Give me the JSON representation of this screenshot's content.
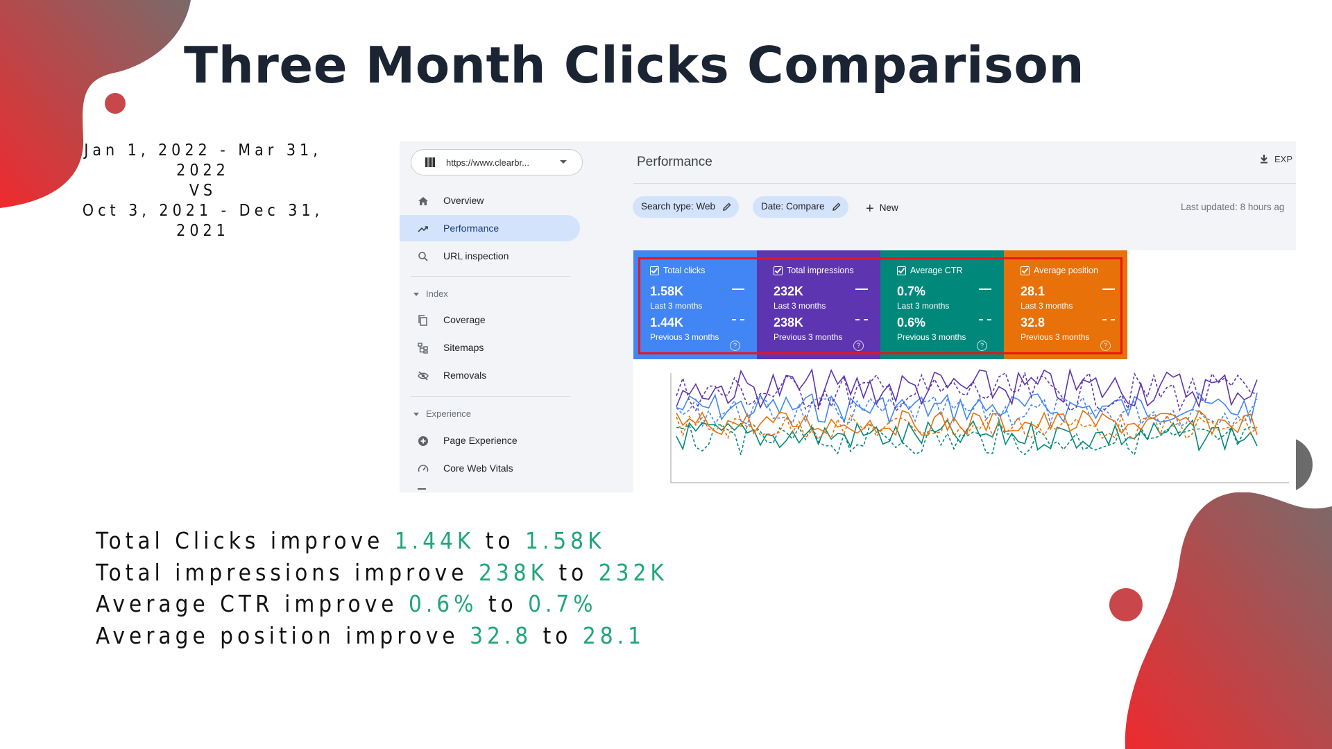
{
  "slide": {
    "title": "Three Month Clicks Comparison",
    "date_range": {
      "line1": "Jan 1, 2022 - Mar 31, 2022",
      "vs": "VS",
      "line2": "Oct 3, 2021 - Dec 31, 2021"
    },
    "summary": [
      {
        "prefix": "Total Clicks improve",
        "from": "1.44K",
        "to_word": "to",
        "to": "1.58K"
      },
      {
        "prefix": "Total impressions improve",
        "from": "238K",
        "to_word": "to",
        "to": "232K"
      },
      {
        "prefix": "Average CTR improve",
        "from": "0.6%",
        "to_word": "to",
        "to": "0.7%"
      },
      {
        "prefix": "Average position improve",
        "from": "32.8",
        "to_word": "to",
        "to": "28.1"
      }
    ],
    "accent_color": "#1ea67a",
    "blob_color": "#e6262b"
  },
  "console": {
    "property_url": "https://www.clearbr...",
    "nav": [
      {
        "label": "Overview",
        "icon": "home-icon",
        "active": false
      },
      {
        "label": "Performance",
        "icon": "trending-up-icon",
        "active": true
      },
      {
        "label": "URL inspection",
        "icon": "search-icon",
        "active": false
      }
    ],
    "section_index": "Index",
    "index_items": [
      {
        "label": "Coverage",
        "icon": "file-copy-icon"
      },
      {
        "label": "Sitemaps",
        "icon": "sitemap-icon"
      },
      {
        "label": "Removals",
        "icon": "visibility-off-icon"
      }
    ],
    "section_experience": "Experience",
    "experience_items": [
      {
        "label": "Page Experience",
        "icon": "plus-circle-icon"
      },
      {
        "label": "Core Web Vitals",
        "icon": "speed-gauge-icon"
      }
    ],
    "page_title": "Performance",
    "export_label": "EXP",
    "chips": {
      "search_type": "Search type: Web",
      "date": "Date: Compare",
      "new_label": "New"
    },
    "last_updated": "Last updated: 8 hours ag",
    "cards": [
      {
        "title": "Total clicks",
        "v1": "1.58K",
        "l1": "Last 3 months",
        "v2": "1.44K",
        "l2": "Previous 3 months",
        "color": "#4285f4"
      },
      {
        "title": "Total impressions",
        "v1": "232K",
        "l1": "Last 3 months",
        "v2": "238K",
        "l2": "Previous 3 months",
        "color": "#5e35b1"
      },
      {
        "title": "Average CTR",
        "v1": "0.7%",
        "l1": "Last 3 months",
        "v2": "0.6%",
        "l2": "Previous 3 months",
        "color": "#00897b"
      },
      {
        "title": "Average position",
        "v1": "28.1",
        "l1": "Last 3 months",
        "v2": "32.8",
        "l2": "Previous 3 months",
        "color": "#e8710a"
      }
    ],
    "help_glyph": "?"
  }
}
